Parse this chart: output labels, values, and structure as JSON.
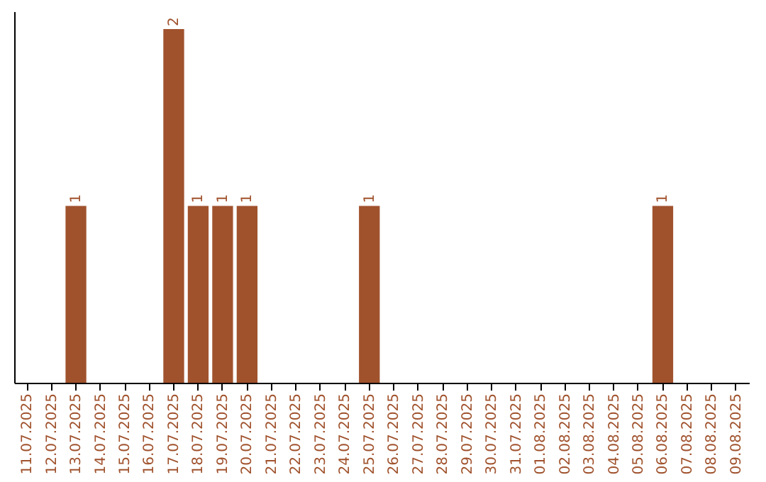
{
  "chart_data": {
    "type": "bar",
    "categories": [
      "11.07.2025",
      "12.07.2025",
      "13.07.2025",
      "14.07.2025",
      "15.07.2025",
      "16.07.2025",
      "17.07.2025",
      "18.07.2025",
      "19.07.2025",
      "20.07.2025",
      "21.07.2025",
      "22.07.2025",
      "23.07.2025",
      "24.07.2025",
      "25.07.2025",
      "26.07.2025",
      "27.07.2025",
      "28.07.2025",
      "29.07.2025",
      "30.07.2025",
      "31.07.2025",
      "01.08.2025",
      "02.08.2025",
      "03.08.2025",
      "04.08.2025",
      "05.08.2025",
      "06.08.2025",
      "07.08.2025",
      "08.08.2025",
      "09.08.2025"
    ],
    "values": [
      0,
      0,
      1,
      0,
      0,
      0,
      2,
      1,
      1,
      1,
      0,
      0,
      0,
      0,
      1,
      0,
      0,
      0,
      0,
      0,
      0,
      0,
      0,
      0,
      0,
      0,
      1,
      0,
      0,
      0
    ],
    "value_labels": [
      null,
      null,
      "1",
      null,
      null,
      null,
      "2",
      "1",
      "1",
      "1",
      null,
      null,
      null,
      null,
      "1",
      null,
      null,
      null,
      null,
      null,
      null,
      null,
      null,
      null,
      null,
      null,
      "1",
      null,
      null,
      null
    ],
    "color": "#a0522d",
    "ylim": [
      0,
      2.1
    ],
    "tick_labels": "x"
  }
}
